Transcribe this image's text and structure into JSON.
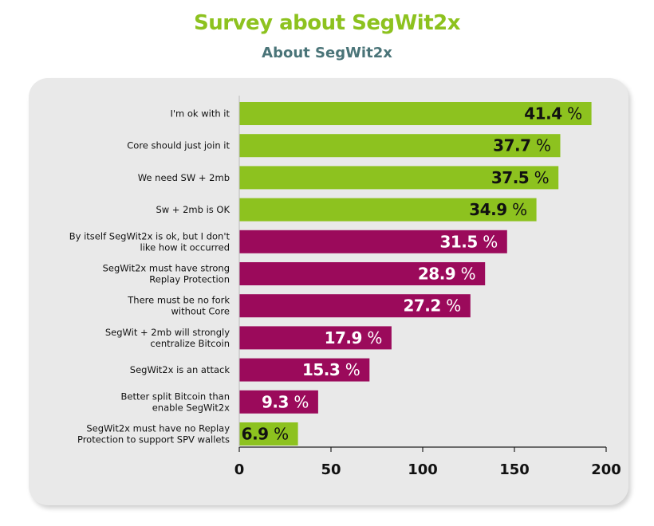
{
  "chart_data": {
    "type": "bar",
    "orientation": "horizontal",
    "title": "Survey about SegWit2x",
    "subtitle": "About SegWit2x",
    "categories": [
      [
        "I'm ok with it"
      ],
      [
        "Core should just join it"
      ],
      [
        "We need SW + 2mb"
      ],
      [
        "Sw + 2mb is OK"
      ],
      [
        "By itself SegWit2x is ok, but I don't",
        "like how it occurred"
      ],
      [
        "SegWit2x must have strong",
        "Replay Protection"
      ],
      [
        "There must be no fork",
        "without Core"
      ],
      [
        "SegWit + 2mb will strongly",
        "centralize Bitcoin"
      ],
      [
        "SegWit2x is an attack"
      ],
      [
        "Better split Bitcoin than",
        "enable SegWit2x"
      ],
      [
        "SegWit2x must have no Replay",
        "Protection to support SPV wallets"
      ]
    ],
    "values": [
      192,
      175,
      174,
      162,
      146,
      134,
      126,
      83,
      71,
      43,
      32
    ],
    "labels": [
      "41.4",
      "37.7",
      "37.5",
      "34.9",
      "31.5",
      "28.9",
      "27.2",
      "17.9",
      "15.3",
      "9.3",
      "6.9"
    ],
    "label_unit": "%",
    "bar_colors": [
      "#8dc21f",
      "#8dc21f",
      "#8dc21f",
      "#8dc21f",
      "#9b0a5b",
      "#9b0a5b",
      "#9b0a5b",
      "#9b0a5b",
      "#9b0a5b",
      "#9b0a5b",
      "#8dc21f"
    ],
    "label_colors": [
      "#111111",
      "#111111",
      "#111111",
      "#111111",
      "#ffffff",
      "#ffffff",
      "#ffffff",
      "#ffffff",
      "#ffffff",
      "#ffffff",
      "#111111"
    ],
    "xlim": [
      0,
      200
    ],
    "xticks": [
      0,
      50,
      100,
      150,
      200
    ],
    "grid": false
  }
}
